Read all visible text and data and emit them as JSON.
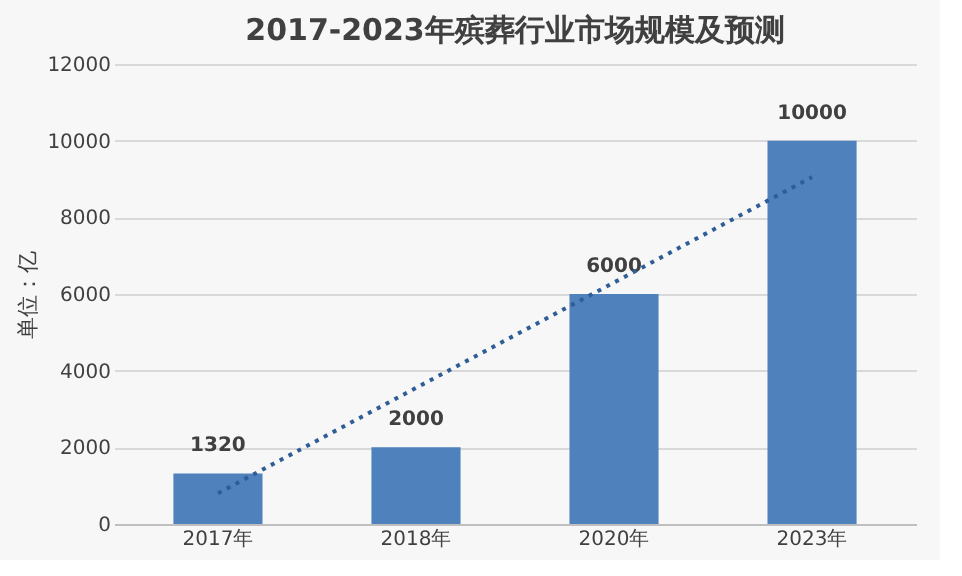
{
  "chart_data": {
    "type": "bar",
    "title": "2017-2023年殡葬行业市场规模及预测",
    "ylabel": "单位：亿",
    "categories": [
      "2017年",
      "2018年",
      "2020年",
      "2023年"
    ],
    "series": [
      {
        "color": "#4f81bd",
        "values": [
          1320,
          2000,
          6000,
          10000
        ],
        "value_labels": [
          "1320",
          "2000",
          "6000",
          "10000"
        ]
      },
      {
        "type": "line",
        "color": "#2f5d96",
        "line_style": "dotted",
        "marker": "none",
        "values": [
          800,
          3550,
          6300,
          9050
        ]
      }
    ],
    "ylim": [
      0,
      12000
    ],
    "yticks": [
      0,
      2000,
      4000,
      6000,
      8000,
      10000,
      12000
    ],
    "grid": "y"
  }
}
